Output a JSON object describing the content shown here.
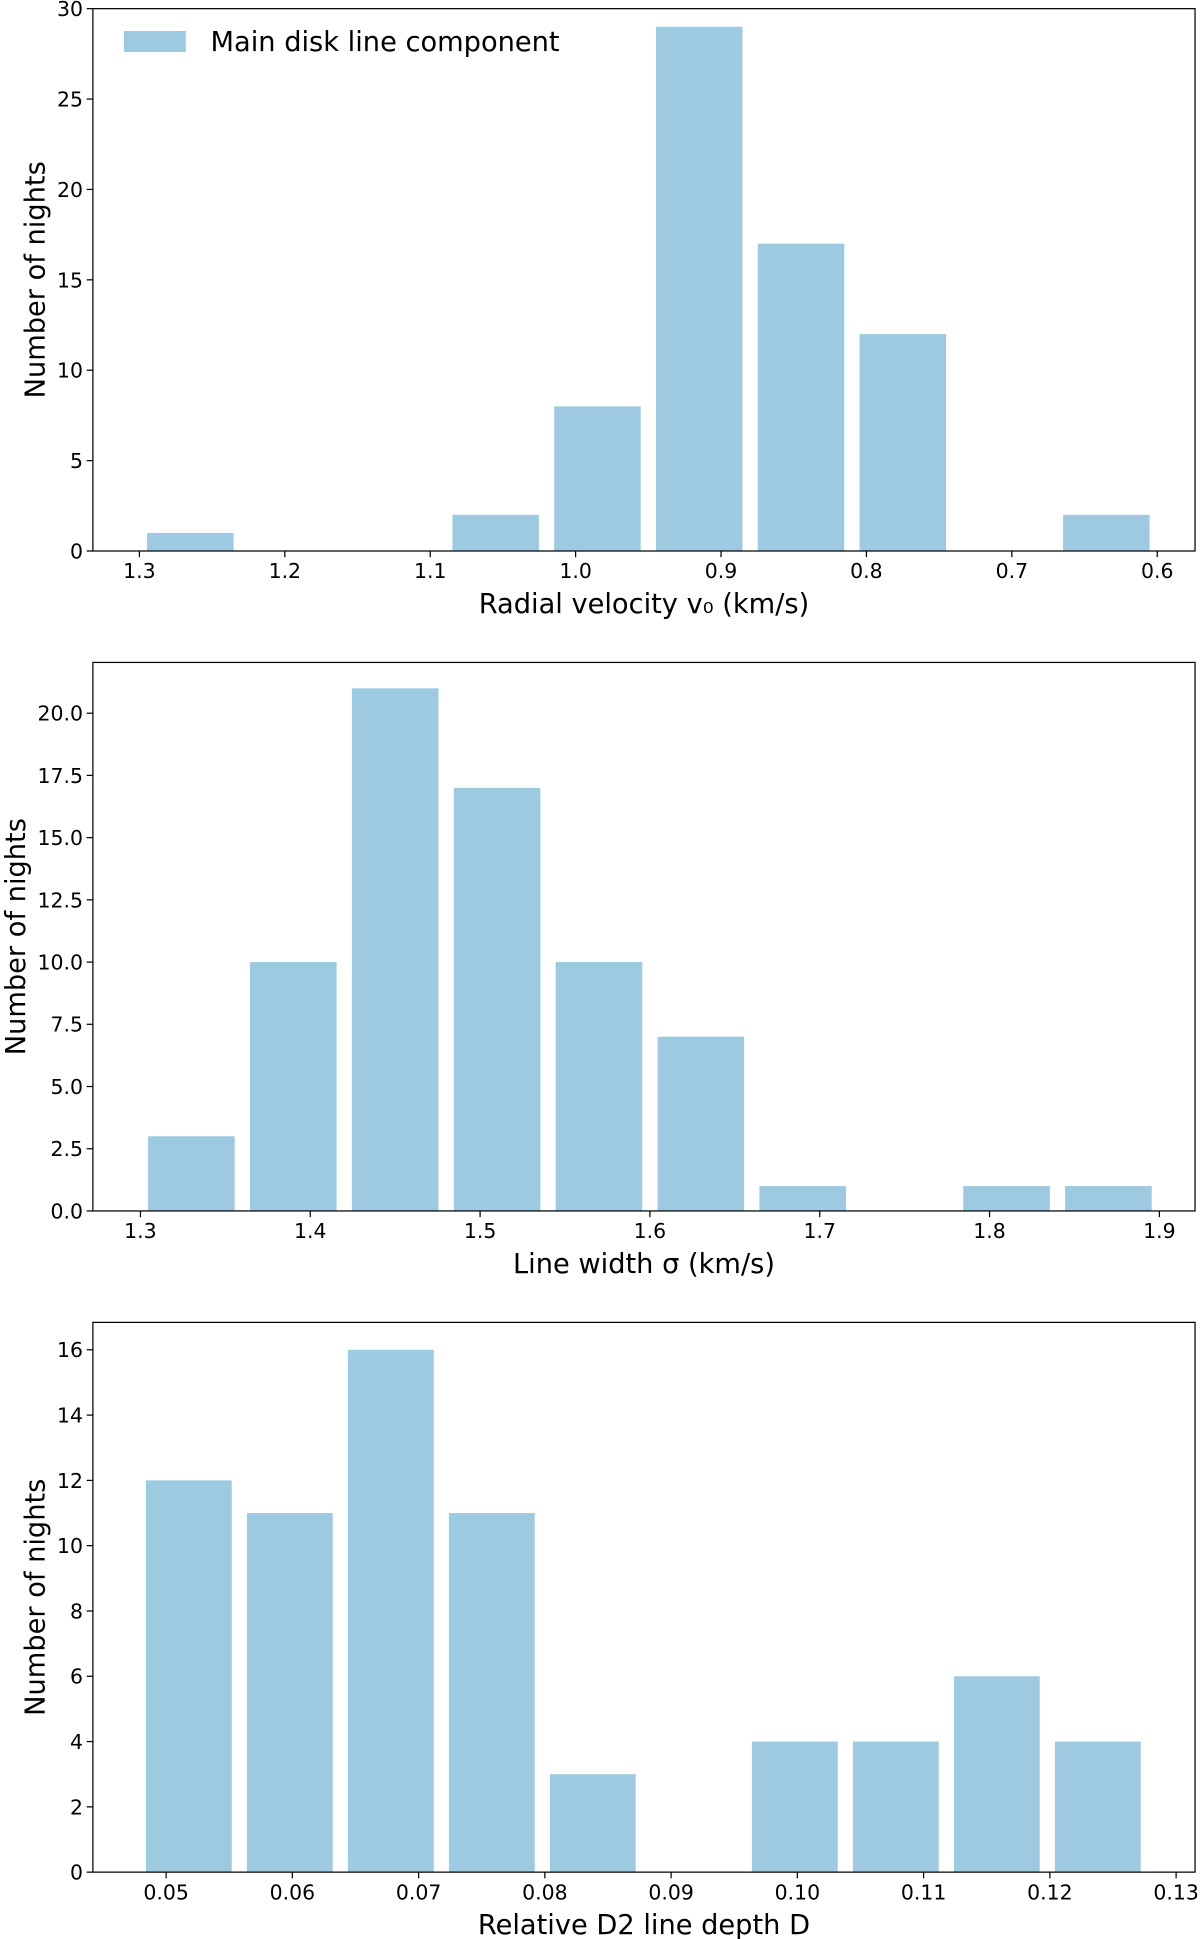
{
  "chart_data": [
    {
      "type": "histogram",
      "xlabel": "Radial velocity v₀ (km/s)",
      "ylabel": "Number of nights",
      "bins": [
        0.6,
        0.67,
        0.74,
        0.81,
        0.88,
        0.95,
        1.02,
        1.09,
        1.16,
        1.23,
        1.3
      ],
      "series": [
        {
          "name": "Main disk line component",
          "color": "#9ecae1",
          "values": [
            2,
            0,
            12,
            17,
            29,
            8,
            2,
            0,
            0,
            1
          ]
        }
      ],
      "legend": "upper left",
      "xlim": [
        1.332,
        0.574
      ],
      "xticks": [
        1.3,
        1.2,
        1.1,
        {
          "value": 1.0,
          "label": "1.0"
        },
        0.9,
        0.8,
        0.7,
        0.6
      ],
      "ylim": [
        0,
        30
      ],
      "yticks": [
        0,
        5,
        10,
        15,
        20,
        25,
        30
      ]
    },
    {
      "type": "histogram",
      "xlabel": "Line width σ (km/s)",
      "ylabel": "Number of nights",
      "bins": [
        1.3,
        1.36,
        1.42,
        1.48,
        1.54,
        1.6,
        1.66,
        1.72,
        1.78,
        1.84,
        1.9
      ],
      "series": [
        {
          "color": "#9ecae1",
          "values": [
            3,
            10,
            21,
            17,
            10,
            7,
            1,
            0,
            1,
            1
          ]
        }
      ],
      "xlim": [
        1.272,
        1.921
      ],
      "xticks": [
        1.3,
        1.4,
        1.5,
        1.6,
        1.7,
        1.8,
        1.9
      ],
      "ylim": [
        0,
        22.04
      ],
      "yticks": [
        {
          "value": 0,
          "label": "0.0"
        },
        2.5,
        5,
        {
          "value": 5,
          "label": "5.0"
        },
        7.5,
        {
          "value": 10,
          "label": "10.0"
        },
        12.5,
        {
          "value": 15,
          "label": "15.0"
        },
        17.5,
        {
          "value": 20,
          "label": "20.0"
        }
      ]
    },
    {
      "type": "histogram",
      "xlabel": "Relative D2 line depth D",
      "ylabel": "Number of nights",
      "bins": [
        0.0478,
        0.0558,
        0.0638,
        0.0718,
        0.0798,
        0.0878,
        0.0958,
        0.1038,
        0.1118,
        0.1198,
        0.1278
      ],
      "series": [
        {
          "color": "#9ecae1",
          "values": [
            12,
            11,
            16,
            11,
            3,
            0,
            4,
            4,
            6,
            4
          ]
        }
      ],
      "xlim": [
        0.0442,
        0.1315
      ],
      "xticks": [
        0.05,
        0.06,
        0.07,
        0.08,
        0.09,
        {
          "value": 0.1,
          "label": "0.10"
        },
        0.11,
        0.12,
        0.13
      ],
      "ylim": [
        0,
        16.84
      ],
      "yticks": [
        0,
        2,
        4,
        6,
        8,
        10,
        12,
        14,
        16
      ]
    }
  ]
}
